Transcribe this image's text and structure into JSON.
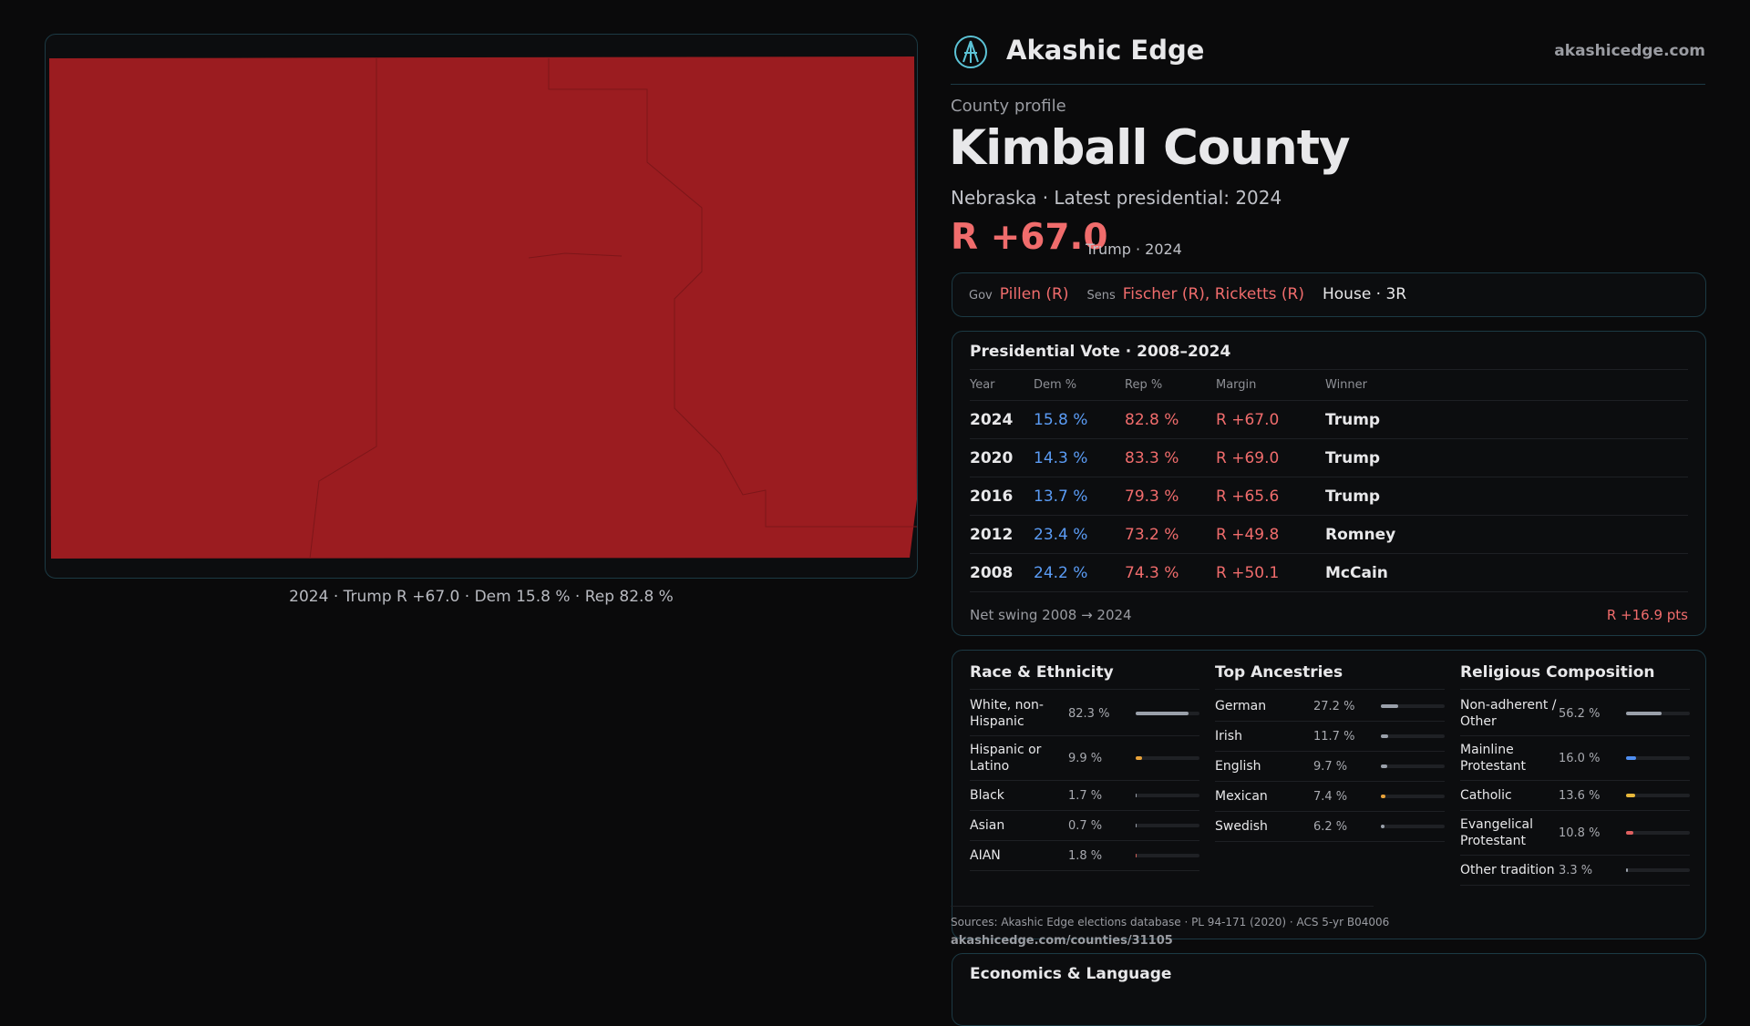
{
  "header": {
    "brand": "Akashic Edge",
    "site": "akashicedge.com"
  },
  "map": {
    "caption": "2024 · Trump R +67.0 · Dem 15.8 % · Rep 82.8 %"
  },
  "profile": {
    "kicker": "County profile",
    "title": "Kimball County",
    "subtitle": "Nebraska · Latest presidential: 2024",
    "margin": "R +67.0",
    "margin_note": "Trump · 2024"
  },
  "officials": {
    "gov_label": "Gov",
    "gov": "Pillen (R)",
    "sens_label": "Sens",
    "sens": "Fischer (R), Ricketts (R)",
    "house": "House · 3R"
  },
  "votes": {
    "title": "Presidential Vote · 2008–2024",
    "columns": [
      "Year",
      "Dem %",
      "Rep %",
      "Margin",
      "Winner"
    ],
    "rows": [
      [
        "2024",
        "15.8 %",
        "82.8 %",
        "R +67.0",
        "Trump"
      ],
      [
        "2020",
        "14.3 %",
        "83.3 %",
        "R +69.0",
        "Trump"
      ],
      [
        "2016",
        "13.7 %",
        "79.3 %",
        "R +65.6",
        "Trump"
      ],
      [
        "2012",
        "23.4 %",
        "73.2 %",
        "R +49.8",
        "Romney"
      ],
      [
        "2008",
        "24.2 %",
        "74.3 %",
        "R +50.1",
        "McCain"
      ]
    ],
    "swing_label": "Net swing 2008 → 2024",
    "swing": "R +16.9 pts"
  },
  "demographics": [
    {
      "title": "Race & Ethnicity",
      "rows": [
        {
          "name": "White, non-Hispanic",
          "value": 82.3,
          "label": "82.3 %",
          "color": "#9aa0aa"
        },
        {
          "name": "Hispanic or Latino",
          "value": 9.9,
          "label": "9.9 %",
          "color": "#e8a23a"
        },
        {
          "name": "Black",
          "value": 1.7,
          "label": "1.7 %",
          "color": "#9aa0aa"
        },
        {
          "name": "Asian",
          "value": 0.7,
          "label": "0.7 %",
          "color": "#9aa0aa"
        },
        {
          "name": "AIAN",
          "value": 1.8,
          "label": "1.8 %",
          "color": "#d0605a"
        }
      ]
    },
    {
      "title": "Top Ancestries",
      "rows": [
        {
          "name": "German",
          "value": 27.2,
          "label": "27.2 %",
          "color": "#9aa0aa"
        },
        {
          "name": "Irish",
          "value": 11.7,
          "label": "11.7 %",
          "color": "#9aa0aa"
        },
        {
          "name": "English",
          "value": 9.7,
          "label": "9.7 %",
          "color": "#9aa0aa"
        },
        {
          "name": "Mexican",
          "value": 7.4,
          "label": "7.4 %",
          "color": "#e8a23a"
        },
        {
          "name": "Swedish",
          "value": 6.2,
          "label": "6.2 %",
          "color": "#9aa0aa"
        }
      ]
    },
    {
      "title": "Religious Composition",
      "rows": [
        {
          "name": "Non-adherent / Other",
          "value": 56.2,
          "label": "56.2 %",
          "color": "#9aa0aa"
        },
        {
          "name": "Mainline Protestant",
          "value": 16.0,
          "label": "16.0 %",
          "color": "#4f8ef0"
        },
        {
          "name": "Catholic",
          "value": 13.6,
          "label": "13.6 %",
          "color": "#e8b83a"
        },
        {
          "name": "Evangelical Protestant",
          "value": 10.8,
          "label": "10.8 %",
          "color": "#e06060"
        },
        {
          "name": "Other tradition",
          "value": 3.3,
          "label": "3.3 %",
          "color": "#9aa0aa"
        }
      ]
    }
  ],
  "sources": "Sources: Akashic Edge elections database · PL 94-171 (2020) · ACS 5-yr B04006",
  "url": "akashicedge.com/counties/31105",
  "economics": {
    "title": "Economics & Language"
  }
}
